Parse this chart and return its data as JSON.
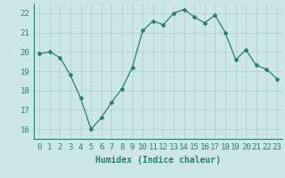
{
  "x": [
    0,
    1,
    2,
    3,
    4,
    5,
    6,
    7,
    8,
    9,
    10,
    11,
    12,
    13,
    14,
    15,
    16,
    17,
    18,
    19,
    20,
    21,
    22,
    23
  ],
  "y": [
    19.9,
    20.0,
    19.7,
    18.8,
    17.6,
    16.0,
    16.6,
    17.4,
    18.1,
    19.2,
    21.1,
    21.6,
    21.4,
    22.0,
    22.2,
    21.8,
    21.5,
    21.9,
    21.0,
    19.6,
    20.1,
    19.3,
    19.1,
    18.6
  ],
  "xlabel": "Humidex (Indice chaleur)",
  "ylim": [
    15.5,
    22.5
  ],
  "xlim": [
    -0.5,
    23.5
  ],
  "yticks": [
    16,
    17,
    18,
    19,
    20,
    21,
    22
  ],
  "xticks": [
    0,
    1,
    2,
    3,
    4,
    5,
    6,
    7,
    8,
    9,
    10,
    11,
    12,
    13,
    14,
    15,
    16,
    17,
    18,
    19,
    20,
    21,
    22,
    23
  ],
  "line_color": "#2e7d6e",
  "bg_color": "#cce8e4",
  "grid_color": "#b0ceca",
  "axis_color": "#2e7d6e",
  "label_fontsize": 7,
  "tick_fontsize": 6.5
}
